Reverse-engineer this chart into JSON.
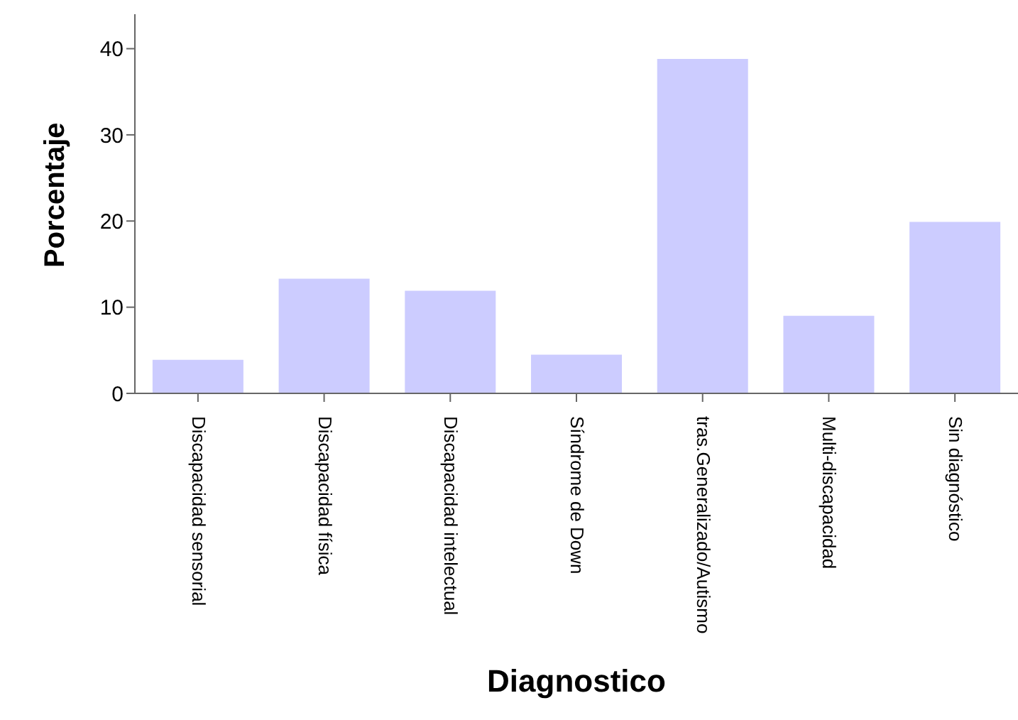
{
  "chart_data": {
    "type": "bar",
    "xlabel": "Diagnostico",
    "ylabel": "Porcentaje",
    "categories": [
      "Discapacidad sensorial",
      "Discapacidad física",
      "Discapacidad intelectual",
      "Síndrome de Down",
      "tras.Generalizado/Autismo",
      "Multi-discapacidad",
      "Sin diagnóstico"
    ],
    "values": [
      3.9,
      13.3,
      11.9,
      4.5,
      38.8,
      9.0,
      19.9
    ],
    "color": "#ccccff",
    "ylim": [
      0,
      44
    ],
    "yticks": [
      0,
      10,
      20,
      30,
      40
    ],
    "grid": false,
    "legend": false
  }
}
